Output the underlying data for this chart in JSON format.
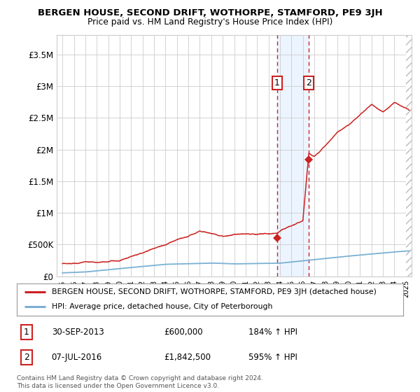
{
  "title": "BERGEN HOUSE, SECOND DRIFT, WOTHORPE, STAMFORD, PE9 3JH",
  "subtitle": "Price paid vs. HM Land Registry's House Price Index (HPI)",
  "ylabel_ticks": [
    "£0",
    "£500K",
    "£1M",
    "£1.5M",
    "£2M",
    "£2.5M",
    "£3M",
    "£3.5M"
  ],
  "ytick_values": [
    0,
    500000,
    1000000,
    1500000,
    2000000,
    2500000,
    3000000,
    3500000
  ],
  "ylim": [
    0,
    3800000
  ],
  "xlim_start": 1994.5,
  "xlim_end": 2025.5,
  "red_line_color": "#cc2222",
  "blue_line_color": "#7ab0d4",
  "background_color": "#ffffff",
  "grid_color": "#cccccc",
  "sale1_x": 2013.75,
  "sale1_y": 600000,
  "sale2_x": 2016.52,
  "sale2_y": 1842500,
  "label1": "1",
  "label2": "2",
  "legend_red": "BERGEN HOUSE, SECOND DRIFT, WOTHORPE, STAMFORD, PE9 3JH (detached house)",
  "legend_blue": "HPI: Average price, detached house, City of Peterborough",
  "note1_num": "1",
  "note1_date": "30-SEP-2013",
  "note1_price": "£600,000",
  "note1_hpi": "184% ↑ HPI",
  "note2_num": "2",
  "note2_date": "07-JUL-2016",
  "note2_price": "£1,842,500",
  "note2_hpi": "595% ↑ HPI",
  "footer": "Contains HM Land Registry data © Crown copyright and database right 2024.\nThis data is licensed under the Open Government Licence v3.0.",
  "hatch_color": "#aaaaaa",
  "shade_color": "#ddeeff"
}
